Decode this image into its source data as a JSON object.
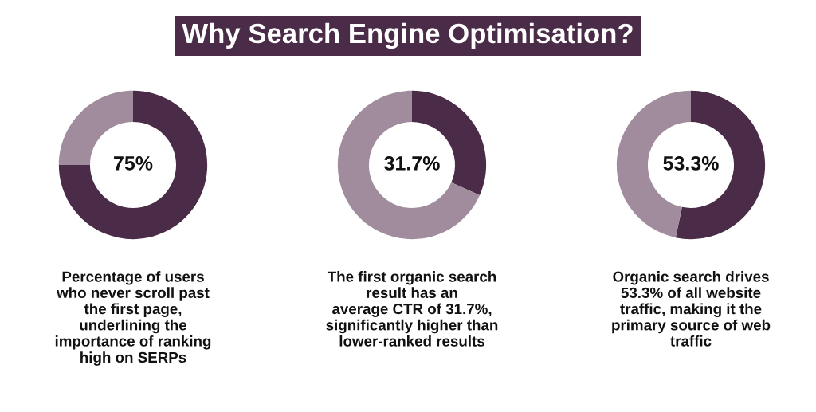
{
  "chart_data": [
    {
      "type": "other",
      "title": "Why Search Engine Optimisation?"
    },
    {
      "type": "donut",
      "categories": [
        null,
        null
      ],
      "values": [
        75,
        25
      ],
      "colors": [
        "#4b2c48",
        "#a08c9d"
      ],
      "value_labels": [
        "75%",
        null
      ],
      "annotations": [
        "Percentage of users\nwho never scroll past\nthe first page,\nunderlining the\nimportance of ranking\nhigh on SERPs"
      ]
    },
    {
      "type": "donut",
      "categories": [
        null,
        null
      ],
      "values": [
        31.7,
        68.3
      ],
      "colors": [
        "#4b2c48",
        "#a08c9d"
      ],
      "value_labels": [
        "31.7%",
        null
      ],
      "annotations": [
        "The first organic search\nresult has an\naverage CTR of 31.7%,\nsignificantly higher than\nlower-ranked results"
      ]
    },
    {
      "type": "donut",
      "categories": [
        null,
        null
      ],
      "values": [
        53.3,
        46.7
      ],
      "colors": [
        "#4b2c48",
        "#a08c9d"
      ],
      "value_labels": [
        "53.3%",
        null
      ],
      "annotations": [
        "Organic search drives\n53.3% of all website\ntraffic, making it the\nprimary source of web\ntraffic"
      ]
    }
  ]
}
